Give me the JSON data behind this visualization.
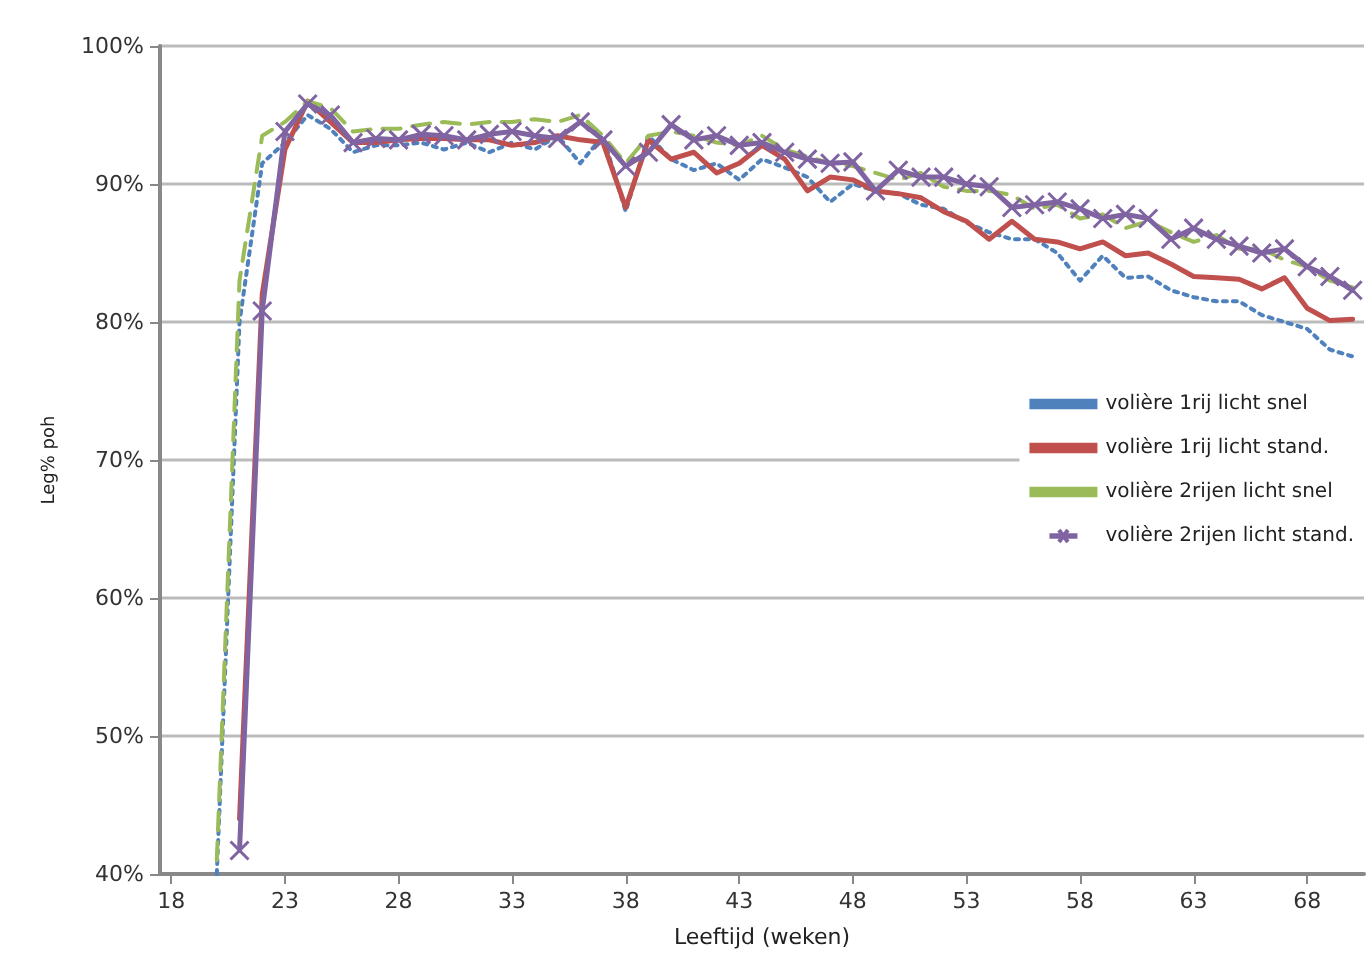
{
  "chart_data": {
    "type": "line",
    "xlabel": "Leeftijd (weken)",
    "ylabel": "Leg% poh",
    "x": [
      20,
      21,
      22,
      23,
      24,
      25,
      26,
      27,
      28,
      29,
      30,
      31,
      32,
      33,
      34,
      35,
      36,
      37,
      38,
      39,
      40,
      41,
      42,
      43,
      44,
      45,
      46,
      47,
      48,
      49,
      50,
      51,
      52,
      53,
      54,
      55,
      56,
      57,
      58,
      59,
      60,
      61,
      62,
      63,
      64,
      65,
      66,
      67,
      68,
      69,
      70
    ],
    "xlim": [
      17.5,
      70.5
    ],
    "xticks": [
      18,
      23,
      28,
      33,
      38,
      43,
      48,
      53,
      58,
      63,
      68
    ],
    "ylim": [
      40,
      100
    ],
    "yticks": [
      {
        "value": 40,
        "label": "40%"
      },
      {
        "value": 50,
        "label": "50%"
      },
      {
        "value": 60,
        "label": "60%"
      },
      {
        "value": 70,
        "label": "70%"
      },
      {
        "value": 80,
        "label": "80%"
      },
      {
        "value": 90,
        "label": "90%"
      },
      {
        "value": 100,
        "label": "100%"
      }
    ],
    "grid": "y",
    "legend": "right",
    "series": [
      {
        "name": "volière 1rij licht snel",
        "color": "#4f81bd",
        "line_style": "dotted",
        "marker": "none",
        "values": [
          40,
          80,
          91.5,
          93,
          95,
          94,
          92.3,
          92.8,
          92.8,
          93,
          92.5,
          93,
          92.3,
          93,
          92.5,
          93.5,
          91.5,
          93.5,
          88,
          93.5,
          91.8,
          91,
          91.5,
          90.3,
          91.8,
          91.2,
          90.5,
          88.7,
          90,
          89.5,
          89.3,
          88.5,
          88.2,
          87.2,
          86.5,
          86,
          86,
          85,
          83,
          84.8,
          83.2,
          83.3,
          82.3,
          81.8,
          81.5,
          81.5,
          80.5,
          80,
          79.5,
          78,
          77.5
        ]
      },
      {
        "name": "volière 1rij licht stand.",
        "color": "#c0504d",
        "line_style": "solid",
        "marker": "none",
        "values": [
          null,
          44,
          82,
          92.5,
          96,
          94.5,
          93,
          93,
          93.2,
          93.3,
          93.3,
          93.2,
          93.2,
          92.8,
          93,
          93.5,
          93.2,
          93,
          88.3,
          93.2,
          91.8,
          92.3,
          90.8,
          91.5,
          92.8,
          91.8,
          89.5,
          90.5,
          90.3,
          89.5,
          89.3,
          89,
          88,
          87.3,
          86,
          87.3,
          86,
          85.8,
          85.3,
          85.8,
          84.8,
          85,
          84.2,
          83.3,
          83.2,
          83.1,
          82.4,
          83.2,
          81,
          80.1,
          80.2
        ]
      },
      {
        "name": "volière 2rijen licht snel",
        "color": "#9bbb59",
        "line_style": "dashed",
        "marker": "none",
        "values": [
          41,
          83,
          93.5,
          94.5,
          96,
          95.5,
          93.8,
          94,
          94,
          94.3,
          94.5,
          94.3,
          94.5,
          94.5,
          94.7,
          94.5,
          95,
          93.5,
          91.5,
          93.5,
          93.8,
          93.5,
          93,
          92.8,
          93.5,
          92.5,
          92,
          91.5,
          91.3,
          90.8,
          90.3,
          90.8,
          89.8,
          89.5,
          89.5,
          89.2,
          88.2,
          88.5,
          87.5,
          87.8,
          86.8,
          87.3,
          86.5,
          85.8,
          86.3,
          85.3,
          85.3,
          84.5,
          84,
          83,
          82.5
        ]
      },
      {
        "name": "volière 2rijen licht stand.",
        "color": "#8064a2",
        "line_style": "solid",
        "marker": "cross",
        "values": [
          null,
          41.7,
          80.8,
          93.8,
          95.8,
          95,
          93,
          93.3,
          93.2,
          93.6,
          93.5,
          93.2,
          93.6,
          93.8,
          93.5,
          93.3,
          94.5,
          93.2,
          91.3,
          92.3,
          94.3,
          93.2,
          93.5,
          92.8,
          93,
          92.3,
          91.8,
          91.5,
          91.6,
          89.5,
          91,
          90.5,
          90.5,
          90,
          89.8,
          88.3,
          88.5,
          88.7,
          88.2,
          87.5,
          87.8,
          87.5,
          86,
          86.8,
          86,
          85.5,
          85,
          85.3,
          84,
          83.3,
          82.3
        ]
      }
    ]
  }
}
